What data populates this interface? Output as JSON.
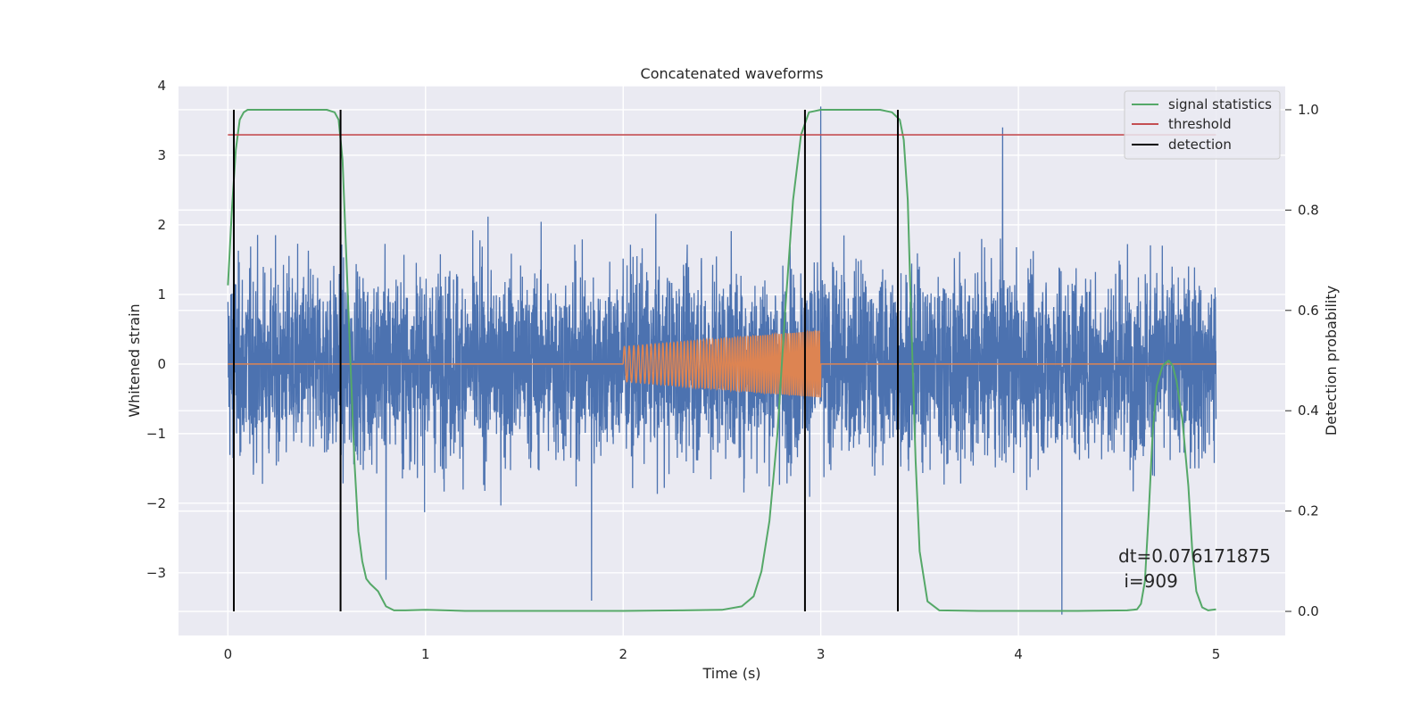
{
  "chart_data": {
    "type": "line",
    "title": "Concatenated waveforms",
    "xlabel": "Time (s)",
    "ylabel": "Whitened strain",
    "y2label": "Detection probability",
    "xlim": [
      -0.25,
      5.35
    ],
    "ylim": [
      -3.9,
      4.0
    ],
    "y2lim": [
      -0.048,
      1.048
    ],
    "xticks": [
      0,
      1,
      2,
      3,
      4,
      5
    ],
    "xtick_labels": [
      "0",
      "1",
      "2",
      "3",
      "4",
      "5"
    ],
    "yticks": [
      -3,
      -2,
      -1,
      0,
      1,
      2,
      3,
      4
    ],
    "ytick_labels": [
      "−3",
      "−2",
      "−1",
      "0",
      "1",
      "2",
      "3",
      "4"
    ],
    "y2ticks": [
      0.0,
      0.2,
      0.4,
      0.6,
      0.8,
      1.0
    ],
    "y2tick_labels": [
      "0.0",
      "0.2",
      "0.4",
      "0.6",
      "0.8",
      "1.0"
    ],
    "grid": true,
    "legend_position": "top-right",
    "legend": [
      {
        "label": "signal statistics",
        "color": "#55a868"
      },
      {
        "label": "threshold",
        "color": "#c44e52"
      },
      {
        "label": "detection",
        "color": "#000000"
      }
    ],
    "series": [
      {
        "axis": "left",
        "color": "#4c72b0",
        "description": "noisy whitened strain, 0 to 5 s, amplitude mostly within about ±2.5 with peaks to about ±3.6",
        "x_range": [
          0,
          5
        ],
        "approx_amplitude": 2.5,
        "notable_peaks": [
          {
            "x": 0.03,
            "y": -3.05
          },
          {
            "x": 0.8,
            "y": -3.1
          },
          {
            "x": 1.84,
            "y": -3.4
          },
          {
            "x": 3.0,
            "y": 3.7
          },
          {
            "x": 3.92,
            "y": 3.4
          },
          {
            "x": 4.22,
            "y": -3.6
          }
        ]
      },
      {
        "axis": "left",
        "color": "#dd8452",
        "description": "injected chirp waveform, zero outside 2 to 3 s",
        "x_range": [
          0,
          5
        ],
        "chirp_start": 2.0,
        "chirp_end": 3.0,
        "amp_start": 0.25,
        "amp_end": 0.48
      },
      {
        "axis": "right",
        "name": "signal statistics",
        "color": "#55a868",
        "x": [
          0.0,
          0.02,
          0.04,
          0.06,
          0.08,
          0.1,
          0.14,
          0.2,
          0.3,
          0.4,
          0.5,
          0.54,
          0.56,
          0.58,
          0.6,
          0.62,
          0.64,
          0.66,
          0.68,
          0.7,
          0.72,
          0.76,
          0.8,
          0.84,
          0.9,
          1.0,
          1.2,
          1.5,
          2.0,
          2.3,
          2.5,
          2.6,
          2.66,
          2.7,
          2.74,
          2.78,
          2.82,
          2.86,
          2.9,
          2.94,
          3.0,
          3.1,
          3.2,
          3.3,
          3.36,
          3.4,
          3.42,
          3.44,
          3.46,
          3.48,
          3.5,
          3.54,
          3.6,
          3.8,
          4.0,
          4.3,
          4.55,
          4.6,
          4.62,
          4.64,
          4.66,
          4.68,
          4.7,
          4.73,
          4.76,
          4.78,
          4.8,
          4.83,
          4.86,
          4.88,
          4.9,
          4.93,
          4.96,
          5.0
        ],
        "y": [
          0.65,
          0.8,
          0.92,
          0.98,
          0.995,
          1.0,
          1.0,
          1.0,
          1.0,
          1.0,
          1.0,
          0.995,
          0.98,
          0.9,
          0.7,
          0.5,
          0.3,
          0.16,
          0.1,
          0.065,
          0.055,
          0.04,
          0.01,
          0.002,
          0.002,
          0.003,
          0.001,
          0.001,
          0.001,
          0.002,
          0.003,
          0.01,
          0.03,
          0.08,
          0.18,
          0.35,
          0.6,
          0.82,
          0.95,
          0.995,
          1.0,
          1.0,
          1.0,
          1.0,
          0.995,
          0.98,
          0.94,
          0.82,
          0.55,
          0.3,
          0.12,
          0.02,
          0.002,
          0.001,
          0.001,
          0.001,
          0.002,
          0.004,
          0.015,
          0.06,
          0.2,
          0.36,
          0.45,
          0.49,
          0.5,
          0.49,
          0.46,
          0.38,
          0.25,
          0.12,
          0.04,
          0.008,
          0.002,
          0.004
        ]
      },
      {
        "axis": "right",
        "name": "threshold",
        "color": "#c44e52",
        "x": [
          0,
          5
        ],
        "y": [
          0.95,
          0.95
        ]
      }
    ],
    "detections": [
      0.03,
      0.57,
      2.92,
      3.39
    ],
    "annotation": [
      "dt=0.076171875",
      " i=909"
    ],
    "annotation_position": {
      "x": 4.52,
      "y_top": 0.105
    }
  }
}
